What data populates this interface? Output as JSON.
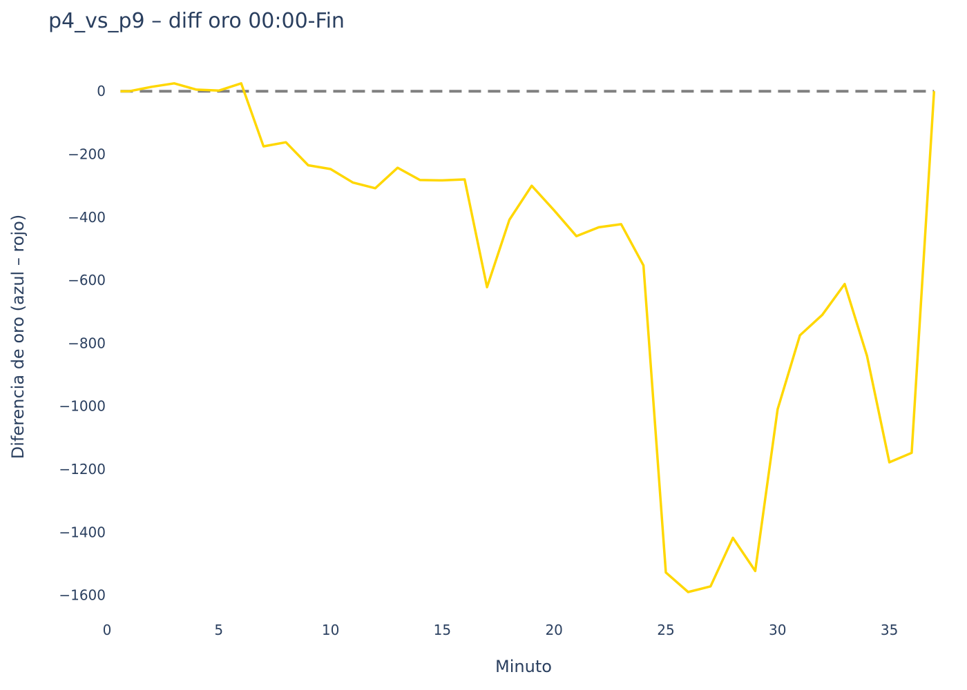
{
  "chart_data": {
    "type": "line",
    "title": "p4_vs_p9 – diff oro 00:00-Fin",
    "xlabel": "Minuto",
    "ylabel": "Diferencia de oro (azul – rojo)",
    "xlim": [
      0,
      37.3
    ],
    "ylim": [
      -1660,
      110
    ],
    "x_ticks": [
      0,
      5,
      10,
      15,
      20,
      25,
      30,
      35
    ],
    "y_ticks": [
      0,
      -200,
      -400,
      -600,
      -800,
      -1000,
      -1200,
      -1400,
      -1600
    ],
    "x_tick_labels": [
      "0",
      "5",
      "10",
      "15",
      "20",
      "25",
      "30",
      "35"
    ],
    "y_tick_labels": [
      "0",
      "−200",
      "−400",
      "−600",
      "−800",
      "−1000",
      "−1200",
      "−1400",
      "−1600"
    ],
    "grid": false,
    "reference_line": {
      "y": 0,
      "style": "dashed",
      "color": "#808080"
    },
    "series": [
      {
        "color": "#FFD700",
        "x": [
          0.6,
          1,
          2,
          3,
          4,
          5,
          6,
          7,
          8,
          9,
          10,
          11,
          12,
          13,
          14,
          15,
          16,
          17,
          18,
          19,
          20,
          21,
          22,
          23,
          24,
          25,
          26,
          27,
          28,
          29,
          30,
          31,
          32,
          33,
          34,
          35,
          36,
          37
        ],
        "y": [
          0,
          0,
          14,
          25,
          5,
          2,
          25,
          -175,
          -162,
          -235,
          -247,
          -290,
          -308,
          -243,
          -282,
          -283,
          -280,
          -622,
          -408,
          -300,
          -378,
          -460,
          -432,
          -422,
          -553,
          -1528,
          -1590,
          -1572,
          -1418,
          -1523,
          -1010,
          -775,
          -710,
          -612,
          -840,
          -1178,
          -1148,
          0
        ]
      }
    ]
  }
}
